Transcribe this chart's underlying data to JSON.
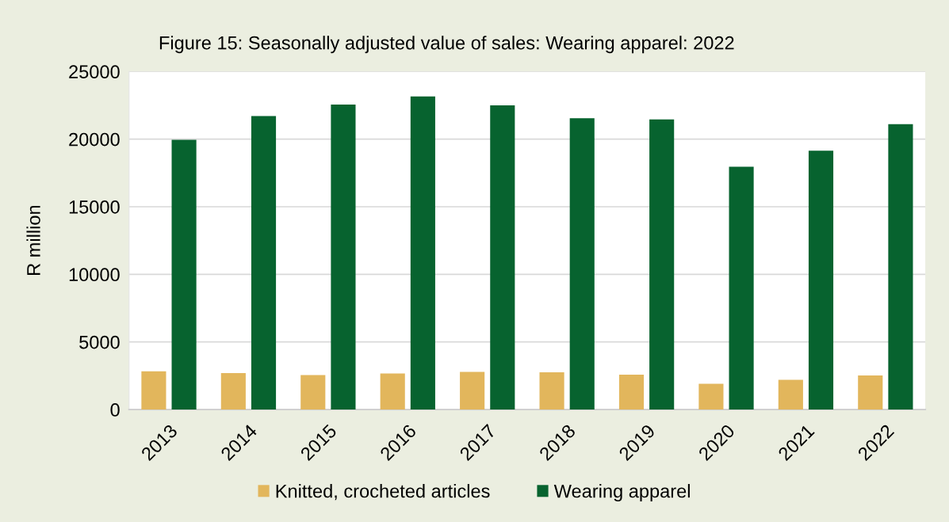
{
  "chart_data": {
    "type": "bar",
    "title": "Figure 15: Seasonally adjusted value of sales: Wearing apparel: 2022",
    "ylabel": "R million",
    "categories": [
      "2013",
      "2014",
      "2015",
      "2016",
      "2017",
      "2018",
      "2019",
      "2020",
      "2021",
      "2022"
    ],
    "series": [
      {
        "name": "Knitted, crocheted articles",
        "color": "#e2b65c",
        "values": [
          2820,
          2700,
          2550,
          2660,
          2780,
          2750,
          2580,
          1900,
          2200,
          2520
        ]
      },
      {
        "name": "Wearing apparel",
        "color": "#07632f",
        "values": [
          19950,
          21700,
          22550,
          23150,
          22500,
          21550,
          21450,
          17950,
          19150,
          21100
        ]
      }
    ],
    "ylim": [
      0,
      25000
    ],
    "yticks": [
      0,
      5000,
      10000,
      15000,
      20000,
      25000
    ],
    "grid": "y",
    "legend": "bottom"
  }
}
